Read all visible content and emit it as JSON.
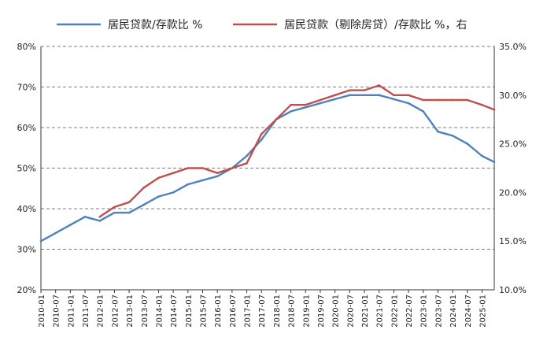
{
  "chart_data": {
    "type": "line",
    "colors": {
      "blue": "#4f81bd",
      "red": "#c0504d"
    },
    "legend": {
      "position": "top"
    },
    "series": [
      {
        "name": "居民贷款/存款比 %",
        "axis": "left",
        "x": [
          "2010-01",
          "2010-07",
          "2011-01",
          "2011-07",
          "2012-01",
          "2012-07",
          "2013-01",
          "2013-07",
          "2014-01",
          "2014-07",
          "2015-01",
          "2015-07",
          "2016-01",
          "2016-07",
          "2017-01",
          "2017-07",
          "2018-01",
          "2018-07",
          "2019-01",
          "2019-07",
          "2020-01",
          "2020-07",
          "2021-01",
          "2021-07",
          "2022-01",
          "2022-07",
          "2023-01",
          "2023-07",
          "2024-01",
          "2024-07",
          "2025-01",
          "2025-06"
        ],
        "values": [
          32,
          34,
          36,
          38,
          37,
          39,
          39,
          41,
          43,
          44,
          46,
          47,
          48,
          50,
          53,
          57,
          62,
          64,
          65,
          66,
          67,
          68,
          68,
          68,
          67,
          66,
          64,
          59,
          58,
          56,
          53,
          51.5
        ]
      },
      {
        "name": "居民贷款（剔除房贷）/存款比 %，右",
        "axis": "right",
        "x": [
          "2010-01",
          "2010-07",
          "2011-01",
          "2011-07",
          "2012-01",
          "2012-07",
          "2013-01",
          "2013-07",
          "2014-01",
          "2014-07",
          "2015-01",
          "2015-07",
          "2016-01",
          "2016-07",
          "2017-01",
          "2017-07",
          "2018-01",
          "2018-07",
          "2019-01",
          "2019-07",
          "2020-01",
          "2020-07",
          "2021-01",
          "2021-07",
          "2022-01",
          "2022-07",
          "2023-01",
          "2023-07",
          "2024-01",
          "2024-07",
          "2025-01",
          "2025-06"
        ],
        "values": [
          null,
          null,
          null,
          null,
          17.5,
          18.5,
          19,
          20.5,
          21.5,
          22,
          22.5,
          22.5,
          22,
          22.5,
          23,
          26,
          27.5,
          29,
          29,
          29.5,
          30,
          30.5,
          30.5,
          31,
          30,
          30,
          29.5,
          29.5,
          29.5,
          29.5,
          29,
          28.5
        ]
      }
    ],
    "y_left": {
      "ylim": [
        20,
        80
      ],
      "ticks": [
        "20%",
        "30%",
        "40%",
        "50%",
        "60%",
        "70%",
        "80%"
      ]
    },
    "y_right": {
      "ylim": [
        10,
        35
      ],
      "ticks": [
        "10.0%",
        "15.0%",
        "20.0%",
        "25.0%",
        "30.0%",
        "35.0%"
      ]
    },
    "x_ticks": [
      "2010-01",
      "2010-07",
      "2011-01",
      "2011-07",
      "2012-01",
      "2012-07",
      "2013-01",
      "2013-07",
      "2014-01",
      "2014-07",
      "2015-01",
      "2015-07",
      "2016-01",
      "2016-07",
      "2017-01",
      "2017-07",
      "2018-01",
      "2018-07",
      "2019-01",
      "2019-07",
      "2020-01",
      "2020-07",
      "2021-01",
      "2021-07",
      "2022-01",
      "2022-07",
      "2023-01",
      "2023-07",
      "2024-01",
      "2024-07",
      "2025-01"
    ],
    "grid": {
      "horizontal": true,
      "style": "dashed"
    }
  }
}
